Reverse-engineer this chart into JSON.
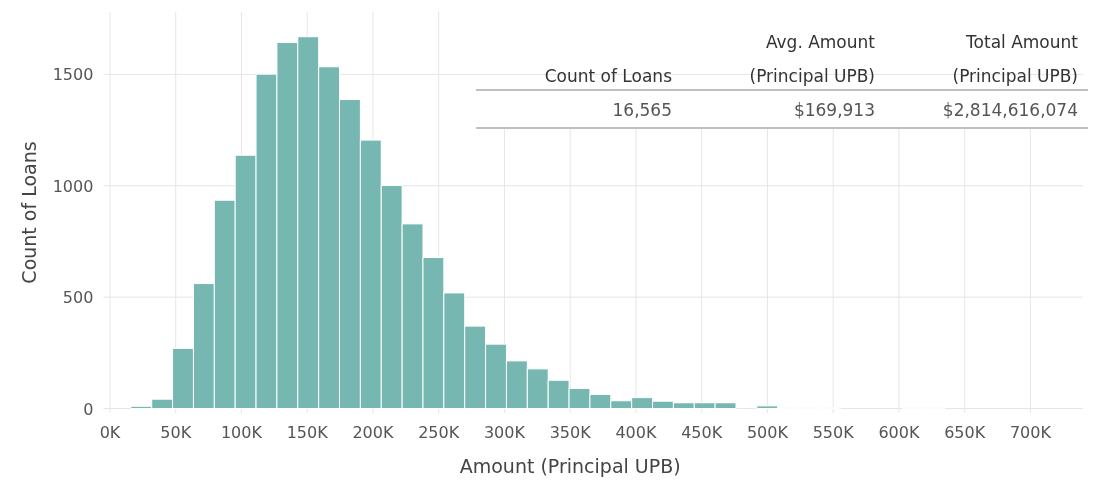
{
  "chart_data": {
    "type": "histogram",
    "xlabel": "Amount (Principal UPB)",
    "ylabel": "Count of Loans",
    "bins": [
      15870,
      31740,
      47610,
      63480,
      79350,
      95220,
      111090,
      126960,
      142830,
      158700,
      174570,
      190440,
      206310,
      222180,
      238050,
      253920,
      269790,
      285660,
      301530,
      317400,
      333270,
      349140,
      365010,
      380880,
      396750,
      412620,
      428490,
      444360,
      460230,
      476100,
      491970,
      507840,
      523710,
      539580,
      555450,
      571320,
      587190,
      603060,
      618930,
      634800
    ],
    "values": [
      10,
      42,
      270,
      561,
      935,
      1137,
      1501,
      1643,
      1669,
      1534,
      1387,
      1205,
      1001,
      829,
      678,
      519,
      370,
      289,
      214,
      178,
      127,
      90,
      63,
      35,
      49,
      33,
      26,
      26,
      26,
      0,
      12,
      5,
      5,
      5,
      0,
      0,
      0,
      5,
      5
    ],
    "color": "#76b7b2",
    "xlim": [
      -5000,
      740000
    ],
    "xticks": [
      {
        "value": 0,
        "label": "0K"
      },
      {
        "value": 50000,
        "label": "50K"
      },
      {
        "value": 100000,
        "label": "100K"
      },
      {
        "value": 150000,
        "label": "150K"
      },
      {
        "value": 200000,
        "label": "200K"
      },
      {
        "value": 250000,
        "label": "250K"
      },
      {
        "value": 300000,
        "label": "300K"
      },
      {
        "value": 350000,
        "label": "350K"
      },
      {
        "value": 400000,
        "label": "400K"
      },
      {
        "value": 450000,
        "label": "450K"
      },
      {
        "value": 500000,
        "label": "500K"
      },
      {
        "value": 550000,
        "label": "550K"
      },
      {
        "value": 600000,
        "label": "600K"
      },
      {
        "value": 650000,
        "label": "650K"
      },
      {
        "value": 700000,
        "label": "700K"
      }
    ],
    "ylim": [
      -20,
      1780
    ],
    "yticks": [
      0,
      500,
      1000,
      1500
    ],
    "grid": true,
    "annotations": [
      "Count of Loans",
      "Avg. Amount\n(Principal UPB)",
      "Total Amount\n(Principal UPB)",
      "16,565",
      "$169,913",
      "$2,814,616,074"
    ]
  }
}
